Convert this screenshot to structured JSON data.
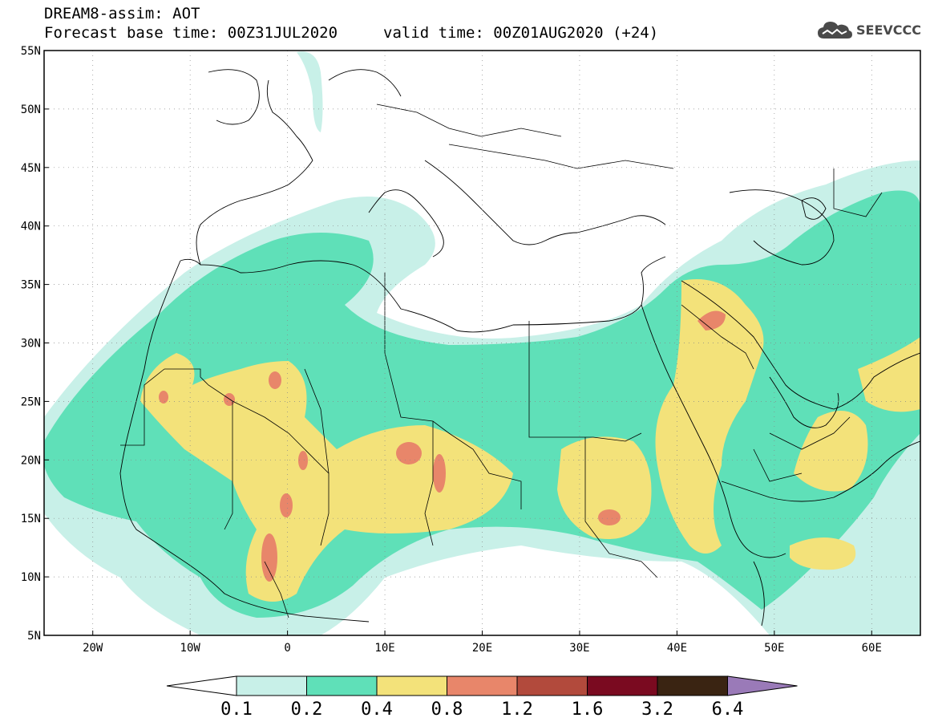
{
  "header": {
    "line1": "DREAM8-assim: AOT",
    "line2_left": "Forecast base time: 00Z31JUL2020",
    "line2_right": "valid time: 00Z01AUG2020 (+24)"
  },
  "logo": {
    "text": "SEEVCCC",
    "icon": "cloud-icon"
  },
  "map": {
    "lat_labels": [
      "55N",
      "50N",
      "45N",
      "40N",
      "35N",
      "30N",
      "25N",
      "20N",
      "15N",
      "10N",
      "5N"
    ],
    "lat_values": [
      55,
      50,
      45,
      40,
      35,
      30,
      25,
      20,
      15,
      10,
      5
    ],
    "lon_labels": [
      "20W",
      "10W",
      "0",
      "10E",
      "20E",
      "30E",
      "40E",
      "50E",
      "60E"
    ],
    "lon_values": [
      -20,
      -10,
      0,
      10,
      20,
      30,
      40,
      50,
      60
    ],
    "lon_range": [
      -25,
      65
    ],
    "lat_range": [
      5,
      55
    ],
    "fill_colors": {
      "0.1-0.2": "#c8f0e8",
      "0.2-0.4": "#5fe0b8",
      "0.4-0.8": "#f3e27a",
      "0.8-1.2": "#e8866a"
    }
  },
  "colorbar": {
    "labels": [
      "0.1",
      "0.2",
      "0.4",
      "0.8",
      "1.2",
      "1.6",
      "3.2",
      "6.4"
    ],
    "colors": [
      "#c8f0e8",
      "#5fe0b8",
      "#f3e27a",
      "#e8866a",
      "#b24a3c",
      "#7a0a20",
      "#3a2412"
    ],
    "under_color": "#ffffff",
    "over_color": "#9a7ab8"
  }
}
